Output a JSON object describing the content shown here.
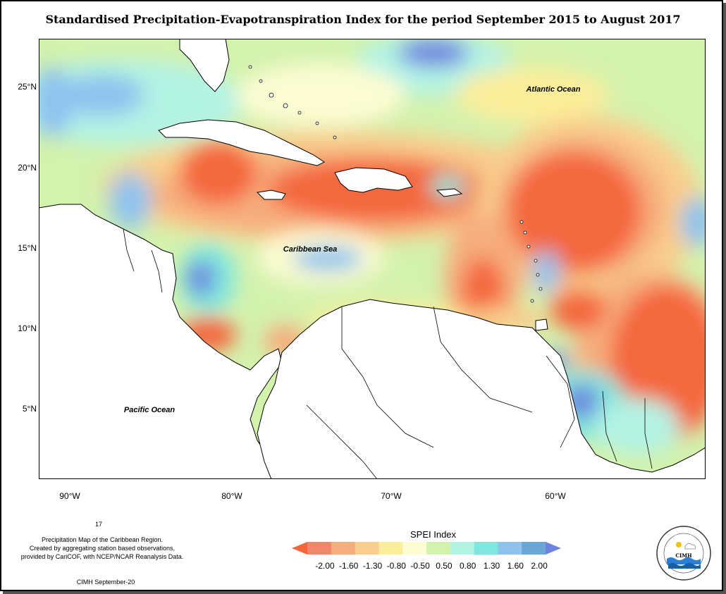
{
  "title": "Standardised Precipitation-Evapotranspiration Index for the period September 2015 to August 2017",
  "map": {
    "extent": {
      "lon": [
        -92,
        -50
      ],
      "lat": [
        1,
        28
      ]
    },
    "lat_ticks": [
      "25°N",
      "20°N",
      "15°N",
      "10°N",
      "5°N"
    ],
    "lon_ticks": [
      "90°W",
      "80°W",
      "70°W",
      "60°W"
    ],
    "labels": {
      "atlantic": "Atlantic Ocean",
      "caribbean": "Caribbean Sea",
      "pacific": "Pacific Ocean"
    }
  },
  "legend": {
    "title": "SPEI Index",
    "ticks": [
      "-2.00",
      "-1.60",
      "-1.30",
      "-0.80",
      "-0.50",
      "0.50",
      "0.80",
      "1.30",
      "1.60",
      "2.00"
    ],
    "colors": [
      "#f4673d",
      "#f2866a",
      "#f6ad7d",
      "#f9cd8c",
      "#fbee9a",
      "#fdfcd2",
      "#d3f2ae",
      "#b3f3e4",
      "#80e7de",
      "#8fc3ee",
      "#6aa6d8",
      "#6e82e0"
    ]
  },
  "notes": {
    "page_number": "17",
    "description": "Precipitation Map of the Caribbean Region.\nCreated by aggregating station based observations,\nprovided by CariCOF, with NCEP/NCAR Reanalysis Data.",
    "credit": "CIMH September-20"
  },
  "logo": {
    "text": "CIMH",
    "ring_text": "Caribbean Institute for Meteorology and Hydrology"
  }
}
